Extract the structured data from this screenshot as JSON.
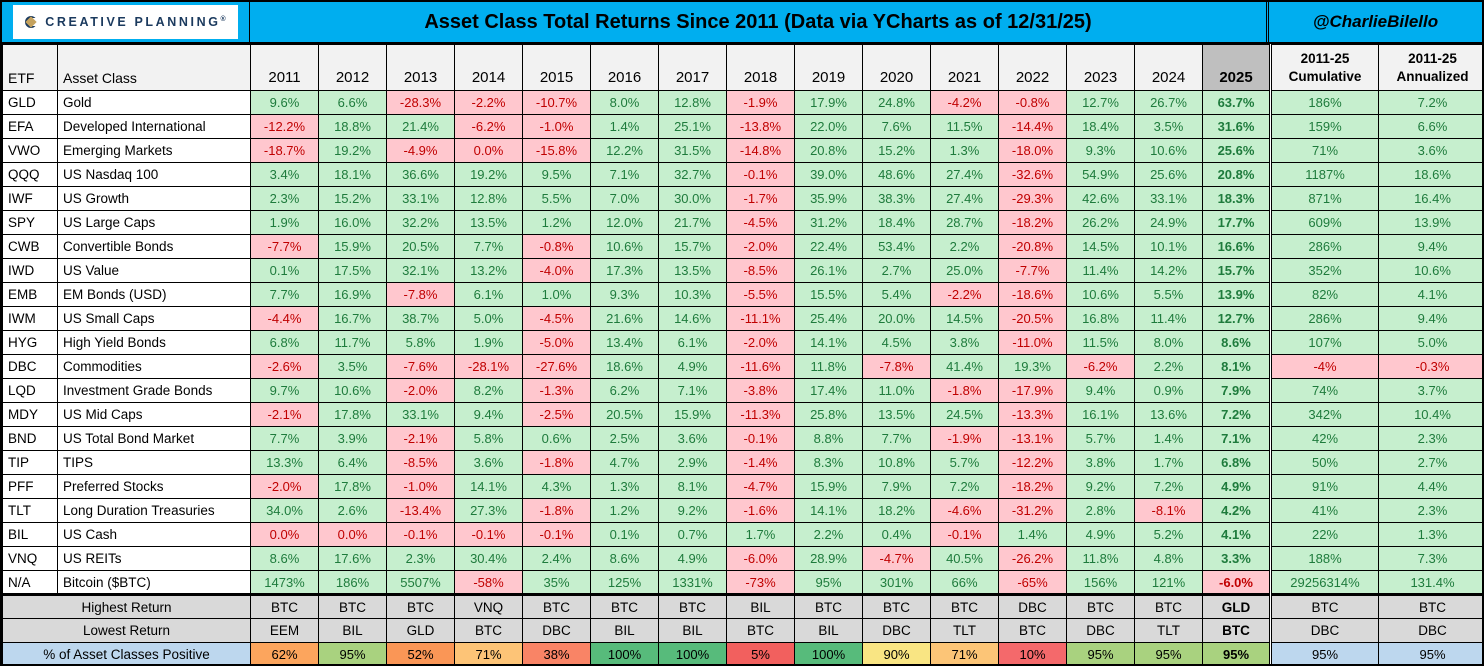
{
  "header": {
    "logo": {
      "brand": "CREATIVE PLANNING",
      "mark": "®"
    },
    "title": "Asset Class Total Returns Since 2011 (Data via YCharts as of 12/31/25)",
    "handle": "@CharlieBilello"
  },
  "chart_data": {
    "type": "table",
    "title": "Asset Class Total Returns Since 2011 (Data via YCharts as of 12/31/25)",
    "columns": [
      "ETF",
      "Asset Class",
      "2011",
      "2012",
      "2013",
      "2014",
      "2015",
      "2016",
      "2017",
      "2018",
      "2019",
      "2020",
      "2021",
      "2022",
      "2023",
      "2024",
      "2025",
      "2011-25 Cumulative",
      "2011-25 Annualized"
    ],
    "rows": [
      [
        "GLD",
        "Gold",
        "9.6%",
        "6.6%",
        "-28.3%",
        "-2.2%",
        "-10.7%",
        "8.0%",
        "12.8%",
        "-1.9%",
        "17.9%",
        "24.8%",
        "-4.2%",
        "-0.8%",
        "12.7%",
        "26.7%",
        "63.7%",
        "186%",
        "7.2%"
      ],
      [
        "EFA",
        "Developed International",
        "-12.2%",
        "18.8%",
        "21.4%",
        "-6.2%",
        "-1.0%",
        "1.4%",
        "25.1%",
        "-13.8%",
        "22.0%",
        "7.6%",
        "11.5%",
        "-14.4%",
        "18.4%",
        "3.5%",
        "31.6%",
        "159%",
        "6.6%"
      ],
      [
        "VWO",
        "Emerging Markets",
        "-18.7%",
        "19.2%",
        "-4.9%",
        "0.0%",
        "-15.8%",
        "12.2%",
        "31.5%",
        "-14.8%",
        "20.8%",
        "15.2%",
        "1.3%",
        "-18.0%",
        "9.3%",
        "10.6%",
        "25.6%",
        "71%",
        "3.6%"
      ],
      [
        "QQQ",
        "US Nasdaq 100",
        "3.4%",
        "18.1%",
        "36.6%",
        "19.2%",
        "9.5%",
        "7.1%",
        "32.7%",
        "-0.1%",
        "39.0%",
        "48.6%",
        "27.4%",
        "-32.6%",
        "54.9%",
        "25.6%",
        "20.8%",
        "1187%",
        "18.6%"
      ],
      [
        "IWF",
        "US Growth",
        "2.3%",
        "15.2%",
        "33.1%",
        "12.8%",
        "5.5%",
        "7.0%",
        "30.0%",
        "-1.7%",
        "35.9%",
        "38.3%",
        "27.4%",
        "-29.3%",
        "42.6%",
        "33.1%",
        "18.3%",
        "871%",
        "16.4%"
      ],
      [
        "SPY",
        "US Large Caps",
        "1.9%",
        "16.0%",
        "32.2%",
        "13.5%",
        "1.2%",
        "12.0%",
        "21.7%",
        "-4.5%",
        "31.2%",
        "18.4%",
        "28.7%",
        "-18.2%",
        "26.2%",
        "24.9%",
        "17.7%",
        "609%",
        "13.9%"
      ],
      [
        "CWB",
        "Convertible Bonds",
        "-7.7%",
        "15.9%",
        "20.5%",
        "7.7%",
        "-0.8%",
        "10.6%",
        "15.7%",
        "-2.0%",
        "22.4%",
        "53.4%",
        "2.2%",
        "-20.8%",
        "14.5%",
        "10.1%",
        "16.6%",
        "286%",
        "9.4%"
      ],
      [
        "IWD",
        "US Value",
        "0.1%",
        "17.5%",
        "32.1%",
        "13.2%",
        "-4.0%",
        "17.3%",
        "13.5%",
        "-8.5%",
        "26.1%",
        "2.7%",
        "25.0%",
        "-7.7%",
        "11.4%",
        "14.2%",
        "15.7%",
        "352%",
        "10.6%"
      ],
      [
        "EMB",
        "EM Bonds (USD)",
        "7.7%",
        "16.9%",
        "-7.8%",
        "6.1%",
        "1.0%",
        "9.3%",
        "10.3%",
        "-5.5%",
        "15.5%",
        "5.4%",
        "-2.2%",
        "-18.6%",
        "10.6%",
        "5.5%",
        "13.9%",
        "82%",
        "4.1%"
      ],
      [
        "IWM",
        "US Small Caps",
        "-4.4%",
        "16.7%",
        "38.7%",
        "5.0%",
        "-4.5%",
        "21.6%",
        "14.6%",
        "-11.1%",
        "25.4%",
        "20.0%",
        "14.5%",
        "-20.5%",
        "16.8%",
        "11.4%",
        "12.7%",
        "286%",
        "9.4%"
      ],
      [
        "HYG",
        "High Yield Bonds",
        "6.8%",
        "11.7%",
        "5.8%",
        "1.9%",
        "-5.0%",
        "13.4%",
        "6.1%",
        "-2.0%",
        "14.1%",
        "4.5%",
        "3.8%",
        "-11.0%",
        "11.5%",
        "8.0%",
        "8.6%",
        "107%",
        "5.0%"
      ],
      [
        "DBC",
        "Commodities",
        "-2.6%",
        "3.5%",
        "-7.6%",
        "-28.1%",
        "-27.6%",
        "18.6%",
        "4.9%",
        "-11.6%",
        "11.8%",
        "-7.8%",
        "41.4%",
        "19.3%",
        "-6.2%",
        "2.2%",
        "8.1%",
        "-4%",
        "-0.3%"
      ],
      [
        "LQD",
        "Investment Grade Bonds",
        "9.7%",
        "10.6%",
        "-2.0%",
        "8.2%",
        "-1.3%",
        "6.2%",
        "7.1%",
        "-3.8%",
        "17.4%",
        "11.0%",
        "-1.8%",
        "-17.9%",
        "9.4%",
        "0.9%",
        "7.9%",
        "74%",
        "3.7%"
      ],
      [
        "MDY",
        "US Mid Caps",
        "-2.1%",
        "17.8%",
        "33.1%",
        "9.4%",
        "-2.5%",
        "20.5%",
        "15.9%",
        "-11.3%",
        "25.8%",
        "13.5%",
        "24.5%",
        "-13.3%",
        "16.1%",
        "13.6%",
        "7.2%",
        "342%",
        "10.4%"
      ],
      [
        "BND",
        "US Total Bond Market",
        "7.7%",
        "3.9%",
        "-2.1%",
        "5.8%",
        "0.6%",
        "2.5%",
        "3.6%",
        "-0.1%",
        "8.8%",
        "7.7%",
        "-1.9%",
        "-13.1%",
        "5.7%",
        "1.4%",
        "7.1%",
        "42%",
        "2.3%"
      ],
      [
        "TIP",
        "TIPS",
        "13.3%",
        "6.4%",
        "-8.5%",
        "3.6%",
        "-1.8%",
        "4.7%",
        "2.9%",
        "-1.4%",
        "8.3%",
        "10.8%",
        "5.7%",
        "-12.2%",
        "3.8%",
        "1.7%",
        "6.8%",
        "50%",
        "2.7%"
      ],
      [
        "PFF",
        "Preferred Stocks",
        "-2.0%",
        "17.8%",
        "-1.0%",
        "14.1%",
        "4.3%",
        "1.3%",
        "8.1%",
        "-4.7%",
        "15.9%",
        "7.9%",
        "7.2%",
        "-18.2%",
        "9.2%",
        "7.2%",
        "4.9%",
        "91%",
        "4.4%"
      ],
      [
        "TLT",
        "Long Duration Treasuries",
        "34.0%",
        "2.6%",
        "-13.4%",
        "27.3%",
        "-1.8%",
        "1.2%",
        "9.2%",
        "-1.6%",
        "14.1%",
        "18.2%",
        "-4.6%",
        "-31.2%",
        "2.8%",
        "-8.1%",
        "4.2%",
        "41%",
        "2.3%"
      ],
      [
        "BIL",
        "US Cash",
        "0.0%",
        "0.0%",
        "-0.1%",
        "-0.1%",
        "-0.1%",
        "0.1%",
        "0.7%",
        "1.7%",
        "2.2%",
        "0.4%",
        "-0.1%",
        "1.4%",
        "4.9%",
        "5.2%",
        "4.1%",
        "22%",
        "1.3%"
      ],
      [
        "VNQ",
        "US REITs",
        "8.6%",
        "17.6%",
        "2.3%",
        "30.4%",
        "2.4%",
        "8.6%",
        "4.9%",
        "-6.0%",
        "28.9%",
        "-4.7%",
        "40.5%",
        "-26.2%",
        "11.8%",
        "4.8%",
        "3.3%",
        "188%",
        "7.3%"
      ],
      [
        "N/A",
        "Bitcoin ($BTC)",
        "1473%",
        "186%",
        "5507%",
        "-58%",
        "35%",
        "125%",
        "1331%",
        "-73%",
        "95%",
        "301%",
        "66%",
        "-65%",
        "156%",
        "121%",
        "-6.0%",
        "29256314%",
        "131.4%"
      ]
    ],
    "summary_rows": [
      {
        "label": "Highest Return",
        "style": "gray",
        "values": [
          "BTC",
          "BTC",
          "BTC",
          "VNQ",
          "BTC",
          "BTC",
          "BTC",
          "BIL",
          "BTC",
          "BTC",
          "BTC",
          "DBC",
          "BTC",
          "BTC",
          "GLD",
          "BTC",
          "BTC"
        ]
      },
      {
        "label": "Lowest Return",
        "style": "gray",
        "values": [
          "EEM",
          "BIL",
          "GLD",
          "BTC",
          "DBC",
          "BIL",
          "BIL",
          "BTC",
          "BIL",
          "DBC",
          "TLT",
          "BTC",
          "DBC",
          "TLT",
          "BTC",
          "DBC",
          "DBC"
        ]
      },
      {
        "label": "% of Asset Classes Positive",
        "style": "blue",
        "values": [
          "62%",
          "95%",
          "52%",
          "71%",
          "38%",
          "100%",
          "100%",
          "5%",
          "100%",
          "90%",
          "71%",
          "10%",
          "95%",
          "95%",
          "95%",
          "95%",
          "95%"
        ],
        "cell_colors": [
          "#FCA55D",
          "#A9D27F",
          "#FA9656",
          "#FDC477",
          "#F98466",
          "#57BB7B",
          "#57BB7B",
          "#F2605E",
          "#57BB7B",
          "#F9E583",
          "#FCC577",
          "#F4696B",
          "#A9D27F",
          "#A9D27F",
          "#A9D27F",
          "#BDD7EE",
          "#BDD7EE"
        ]
      }
    ],
    "legend": "green = positive year, red = negative year; 2025 column bold"
  },
  "colors": {
    "header_blue": "#00AEEF",
    "positive_bg": "#C6EFCE",
    "positive_text": "#1E7B3C",
    "negative_bg": "#FFC7CE",
    "negative_text": "#C00000",
    "summary_gray": "#D9D9D9",
    "light_blue": "#BDD7EE",
    "col_header_bg": "#F2F2F2",
    "y2025_bg": "#BFBFBF",
    "logo_navy": "#1B3A5E",
    "logo_gold": "#C5A25D"
  }
}
